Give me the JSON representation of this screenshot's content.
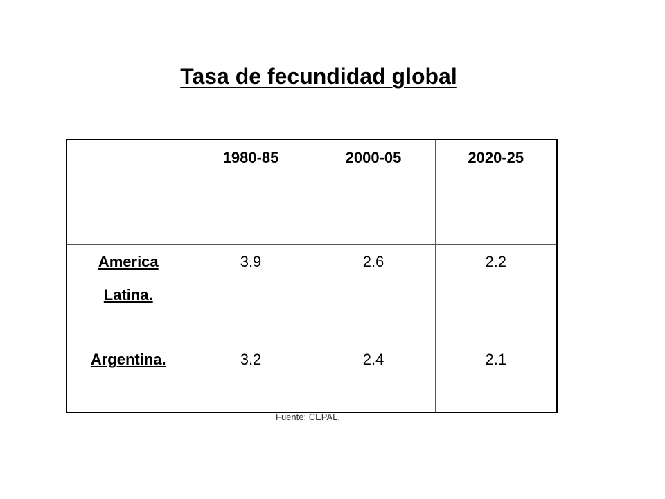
{
  "title": "Tasa de fecundidad global",
  "table": {
    "headers": [
      "",
      "1980-85",
      "2000-05",
      "2020-25"
    ],
    "rows": [
      {
        "label_line1": "America",
        "label_line2": "Latina.",
        "values": [
          "3.9",
          "2.6",
          "2.2"
        ]
      },
      {
        "label_line1": "Argentina.",
        "label_line2": "",
        "values": [
          "3.2",
          "2.4",
          "2.1"
        ]
      }
    ]
  },
  "source": "Fuente: CEPAL."
}
